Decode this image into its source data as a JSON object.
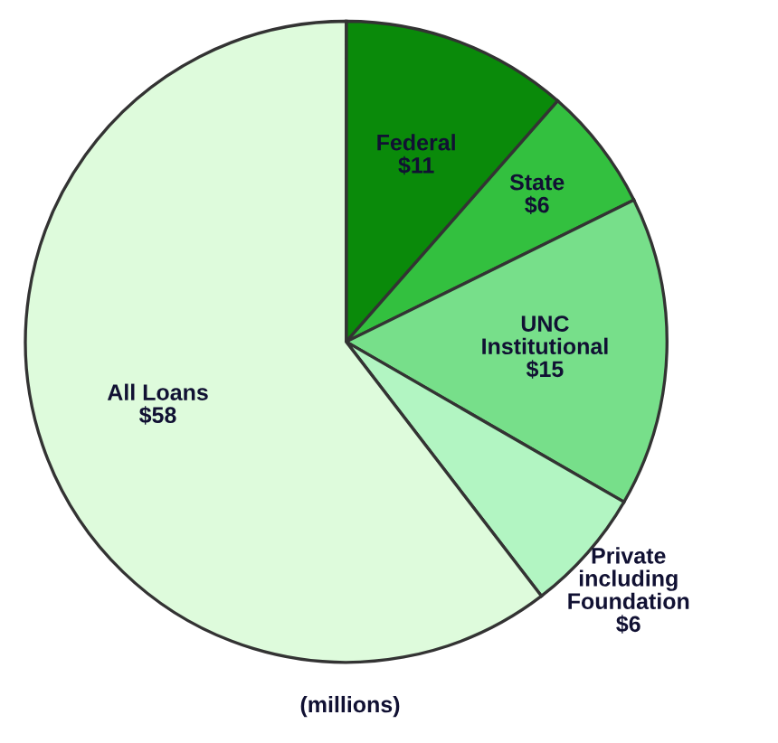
{
  "chart_data": {
    "type": "pie",
    "categories": [
      "Federal",
      "State",
      "UNC Institutional",
      "Private including Foundation",
      "All Loans"
    ],
    "values": [
      11,
      6,
      15,
      6,
      58
    ],
    "value_labels": [
      "$11",
      "$6",
      "$15",
      "$6",
      "$58"
    ],
    "colors": [
      "#0a8a0a",
      "#33c03f",
      "#77df8a",
      "#b2f5c2",
      "#defbdc"
    ],
    "annotations": [
      "(millions)"
    ]
  }
}
